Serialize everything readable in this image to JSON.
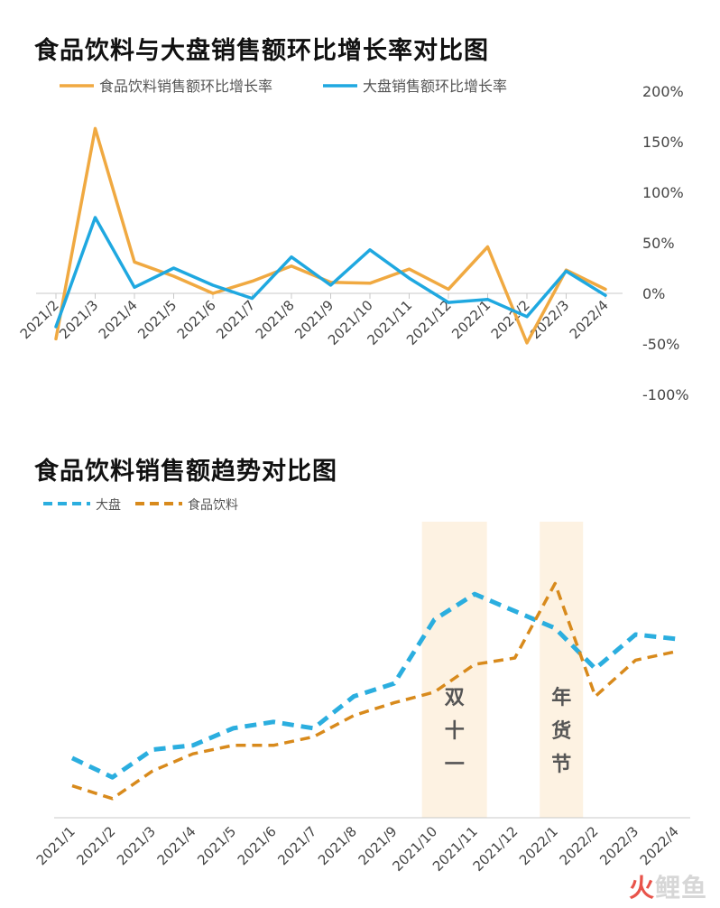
{
  "colors": {
    "food": "#F0A941",
    "market": "#1FA8E0",
    "food_dash": "#D88A1C",
    "market_dash": "#2BAEDF",
    "band": "#FDF2E2",
    "axis": "#C8C8C8"
  },
  "chart_data": [
    {
      "type": "line",
      "title": "食品饮料与大盘销售额环比增长率对比图",
      "categories": [
        "2021/2",
        "2021/3",
        "2021/4",
        "2021/5",
        "2021/6",
        "2021/7",
        "2021/8",
        "2021/9",
        "2021/10",
        "2021/11",
        "2021/12",
        "2022/1",
        "2022/2",
        "2022/3",
        "2022/4"
      ],
      "series": [
        {
          "name": "食品饮料销售额环比增长率",
          "values": [
            -45,
            163,
            31,
            17,
            0,
            12,
            27,
            11,
            10,
            24,
            4,
            46,
            -49,
            23,
            4
          ]
        },
        {
          "name": "大盘销售额环比增长率",
          "values": [
            -33,
            75,
            6,
            25,
            8,
            -5,
            36,
            8,
            43,
            15,
            -9,
            -6,
            -23,
            22,
            -2
          ]
        }
      ],
      "ylim": [
        -100,
        200
      ],
      "yticks": [
        "200%",
        "150%",
        "100%",
        "50%",
        "0%",
        "-50%",
        "-100%"
      ],
      "legend_position": "top",
      "grid": false
    },
    {
      "type": "line",
      "title": "食品饮料销售额趋势对比图",
      "categories": [
        "2021/1",
        "2021/2",
        "2021/3",
        "2021/4",
        "2021/5",
        "2021/6",
        "2021/7",
        "2021/8",
        "2021/9",
        "2021/10",
        "2021/11",
        "2021/12",
        "2022/1",
        "2022/2",
        "2022/3",
        "2022/4"
      ],
      "series": [
        {
          "name": "大盘",
          "values": [
            28,
            19,
            32,
            34,
            42,
            45,
            42,
            57,
            63,
            93,
            105,
            97,
            89,
            70,
            86,
            84
          ]
        },
        {
          "name": "食品饮料",
          "values": [
            15,
            9,
            22,
            30,
            34,
            34,
            38,
            48,
            54,
            59,
            72,
            75,
            110,
            57,
            74,
            78
          ]
        }
      ],
      "annotations": [
        {
          "label": "双十一",
          "categories": [
            "2021/10",
            "2021/11"
          ]
        },
        {
          "label": "年货节",
          "categories": [
            "2022/1"
          ]
        }
      ],
      "y_axis_labels": "none",
      "legend_position": "top-left",
      "grid": false
    }
  ],
  "brand": {
    "part1": "火",
    "part2": "鲤鱼"
  }
}
